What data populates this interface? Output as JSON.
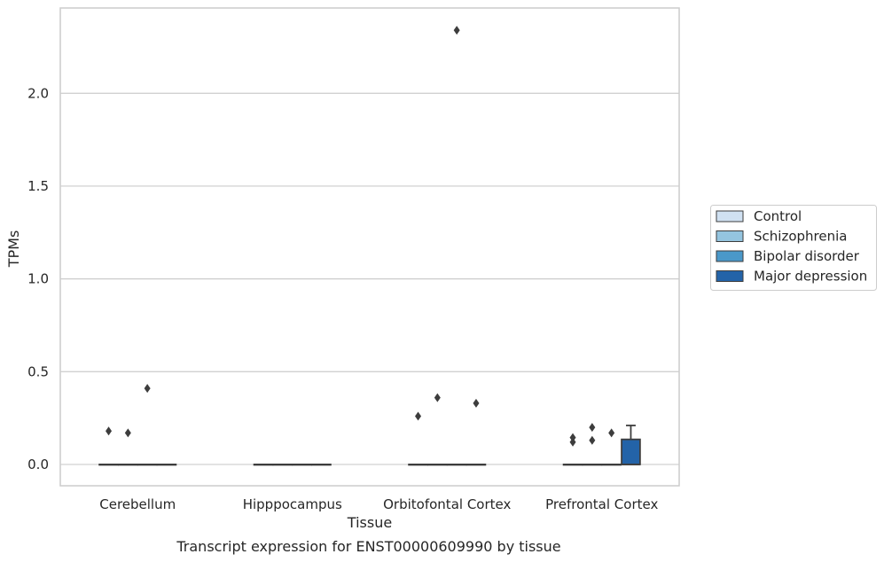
{
  "chart_data": {
    "type": "box",
    "xlabel": "Tissue",
    "ylabel": "TPMs",
    "caption": "Transcript expression for ENST00000609990 by tissue",
    "ylim": [
      -0.115,
      2.46
    ],
    "yticks": [
      "0.0",
      "0.5",
      "1.0",
      "1.5",
      "2.0"
    ],
    "grid": "horizontal",
    "categories": [
      "Cerebellum",
      "Hipppocampus",
      "Orbitofontal Cortex",
      "Prefrontal Cortex"
    ],
    "legend": {
      "position": "right",
      "items": [
        "Control",
        "Schizophrenia",
        "Bipolar disorder",
        "Major depression"
      ]
    },
    "colors": {
      "Control": "#d0e1f2",
      "Schizophrenia": "#94c4df",
      "Bipolar disorder": "#4a98c9",
      "Major depression": "#2363a8",
      "frame": "#cccccc",
      "grid": "#cccccc",
      "stroke": "#3d3d3d"
    },
    "series": [
      {
        "name": "Control",
        "boxes": [
          {
            "category": "Cerebellum",
            "q1": 0,
            "median": 0,
            "q3": 0,
            "whisker_low": 0,
            "whisker_high": 0,
            "outliers": [
              0.18
            ]
          },
          {
            "category": "Hipppocampus",
            "q1": 0,
            "median": 0,
            "q3": 0,
            "whisker_low": 0,
            "whisker_high": 0,
            "outliers": []
          },
          {
            "category": "Orbitofontal Cortex",
            "q1": 0,
            "median": 0,
            "q3": 0,
            "whisker_low": 0,
            "whisker_high": 0,
            "outliers": [
              0.26
            ]
          },
          {
            "category": "Prefrontal Cortex",
            "q1": 0,
            "median": 0,
            "q3": 0,
            "whisker_low": 0,
            "whisker_high": 0,
            "outliers": [
              0.12,
              0.145
            ]
          }
        ]
      },
      {
        "name": "Schizophrenia",
        "boxes": [
          {
            "category": "Cerebellum",
            "q1": 0,
            "median": 0,
            "q3": 0,
            "whisker_low": 0,
            "whisker_high": 0,
            "outliers": [
              0.17
            ]
          },
          {
            "category": "Hipppocampus",
            "q1": 0,
            "median": 0,
            "q3": 0,
            "whisker_low": 0,
            "whisker_high": 0,
            "outliers": []
          },
          {
            "category": "Orbitofontal Cortex",
            "q1": 0,
            "median": 0,
            "q3": 0,
            "whisker_low": 0,
            "whisker_high": 0,
            "outliers": [
              0.36
            ]
          },
          {
            "category": "Prefrontal Cortex",
            "q1": 0,
            "median": 0,
            "q3": 0,
            "whisker_low": 0,
            "whisker_high": 0,
            "outliers": [
              0.13,
              0.2
            ]
          }
        ]
      },
      {
        "name": "Bipolar disorder",
        "boxes": [
          {
            "category": "Cerebellum",
            "q1": 0,
            "median": 0,
            "q3": 0,
            "whisker_low": 0,
            "whisker_high": 0,
            "outliers": [
              0.41
            ]
          },
          {
            "category": "Hipppocampus",
            "q1": 0,
            "median": 0,
            "q3": 0,
            "whisker_low": 0,
            "whisker_high": 0,
            "outliers": []
          },
          {
            "category": "Orbitofontal Cortex",
            "q1": 0,
            "median": 0,
            "q3": 0,
            "whisker_low": 0,
            "whisker_high": 0,
            "outliers": [
              2.34
            ]
          },
          {
            "category": "Prefrontal Cortex",
            "q1": 0,
            "median": 0,
            "q3": 0,
            "whisker_low": 0,
            "whisker_high": 0,
            "outliers": [
              0.17
            ]
          }
        ]
      },
      {
        "name": "Major depression",
        "boxes": [
          {
            "category": "Cerebellum",
            "q1": 0,
            "median": 0,
            "q3": 0,
            "whisker_low": 0,
            "whisker_high": 0,
            "outliers": []
          },
          {
            "category": "Hipppocampus",
            "q1": 0,
            "median": 0,
            "q3": 0,
            "whisker_low": 0,
            "whisker_high": 0,
            "outliers": []
          },
          {
            "category": "Orbitofontal Cortex",
            "q1": 0,
            "median": 0,
            "q3": 0,
            "whisker_low": 0,
            "whisker_high": 0,
            "outliers": [
              0.33
            ]
          },
          {
            "category": "Prefrontal Cortex",
            "q1": 0,
            "median": 0,
            "q3": 0.135,
            "whisker_low": 0,
            "whisker_high": 0.21,
            "outliers": []
          }
        ]
      }
    ]
  }
}
